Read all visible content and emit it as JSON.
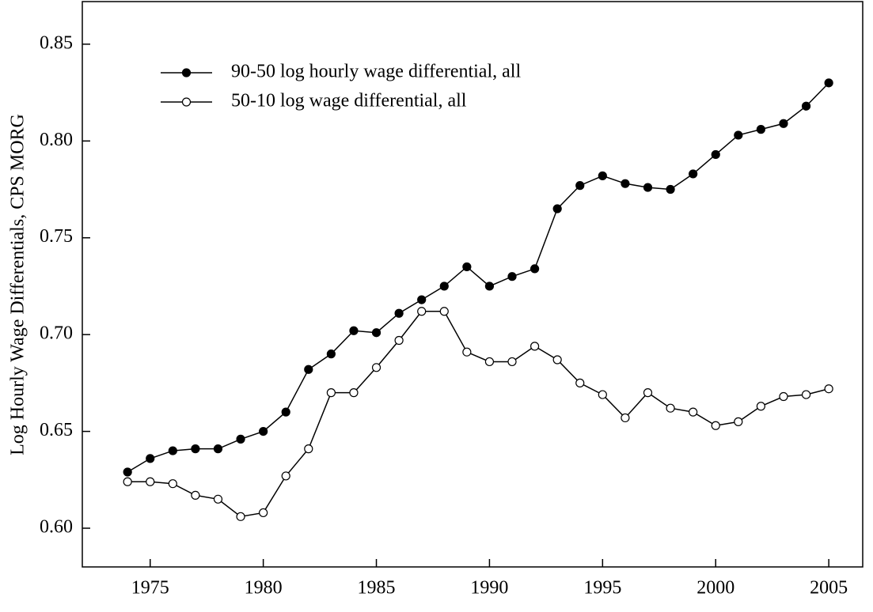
{
  "chart_data": {
    "type": "line",
    "y_label": "Log Hourly Wage Differentials, CPS MORG",
    "x": [
      1974,
      1975,
      1976,
      1977,
      1978,
      1979,
      1980,
      1981,
      1982,
      1983,
      1984,
      1985,
      1986,
      1987,
      1988,
      1989,
      1990,
      1991,
      1992,
      1993,
      1994,
      1995,
      1996,
      1997,
      1998,
      1999,
      2000,
      2001,
      2002,
      2003,
      2004,
      2005
    ],
    "series": [
      {
        "name": "90-50 log hourly wage differential, all",
        "color": "#000000",
        "marker": "filled",
        "values": [
          0.629,
          0.636,
          0.64,
          0.641,
          0.641,
          0.646,
          0.65,
          0.66,
          0.682,
          0.69,
          0.702,
          0.701,
          0.711,
          0.718,
          0.725,
          0.735,
          0.725,
          0.73,
          0.734,
          0.765,
          0.777,
          0.782,
          0.778,
          0.776,
          0.775,
          0.783,
          0.793,
          0.803,
          0.806,
          0.809,
          0.818,
          0.83
        ]
      },
      {
        "name": "50-10 log wage differential, all",
        "color": "#000000",
        "marker": "open",
        "values": [
          0.624,
          0.624,
          0.623,
          0.617,
          0.615,
          0.606,
          0.608,
          0.627,
          0.641,
          0.67,
          0.67,
          0.683,
          0.697,
          0.712,
          0.712,
          0.691,
          0.686,
          0.686,
          0.694,
          0.687,
          0.675,
          0.669,
          0.657,
          0.67,
          0.662,
          0.66,
          0.653,
          0.655,
          0.663,
          0.668,
          0.669,
          0.672
        ]
      }
    ],
    "xlim": [
      1972,
      2006.5
    ],
    "ylim": [
      0.58,
      0.872
    ],
    "xticks": [
      1975,
      1980,
      1985,
      1990,
      1995,
      2000,
      2005
    ],
    "yticks": [
      {
        "value": 0.6,
        "label": "0.60"
      },
      0.65,
      {
        "value": 0.7,
        "label": "0.70"
      },
      0.75,
      {
        "value": 0.8,
        "label": "0.80"
      },
      0.85
    ],
    "legend": "upper left",
    "grid": false
  }
}
